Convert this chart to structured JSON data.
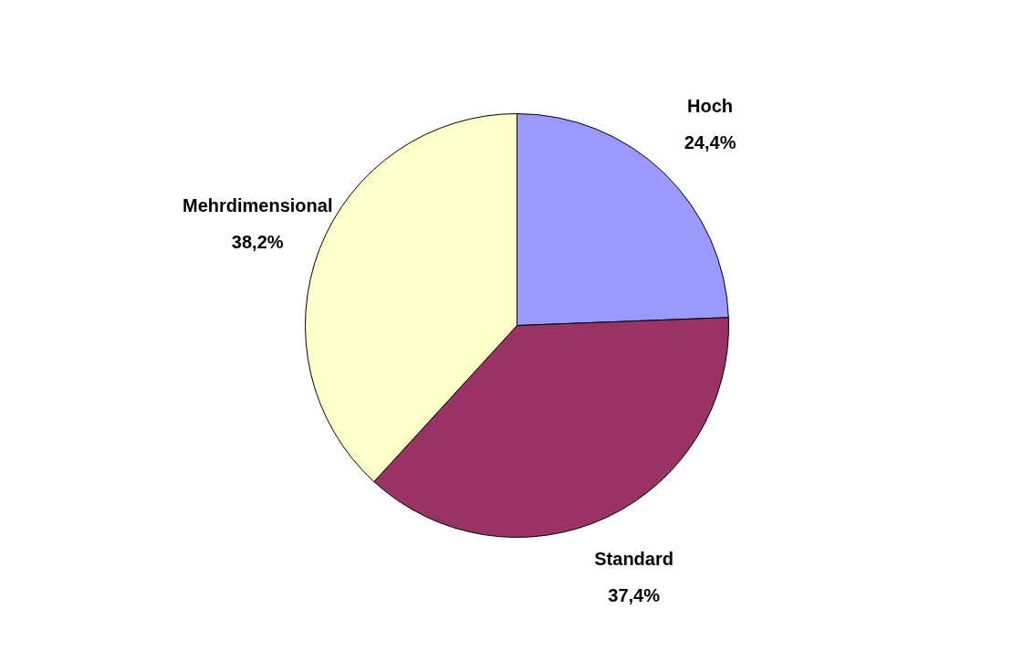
{
  "chart_data": {
    "type": "pie",
    "categories": [
      "Hoch",
      "Standard",
      "Mehrdimensional"
    ],
    "values": [
      24.4,
      37.4,
      38.2
    ],
    "colors": [
      "#9999ff",
      "#993366",
      "#ffffcc"
    ],
    "value_labels": [
      "24,4%",
      "37,4%",
      "38,2%"
    ],
    "legend": false
  }
}
